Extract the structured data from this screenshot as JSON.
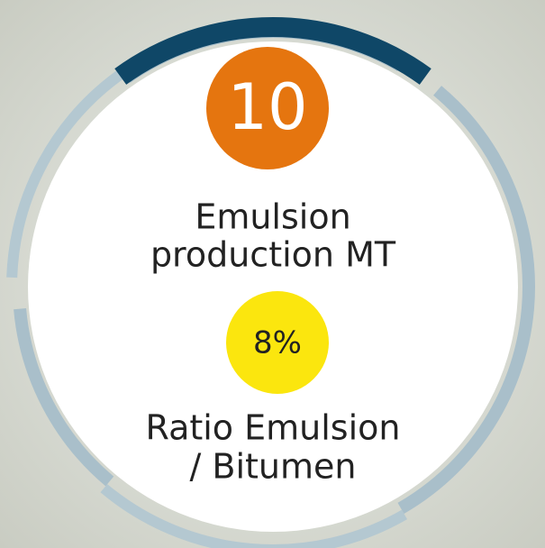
{
  "metrics": [
    {
      "value": "10",
      "label_lines": [
        "Emulsion",
        "production MT"
      ]
    },
    {
      "value": "8%",
      "label_lines": [
        "Ratio Emulsion",
        "/ Bitumen"
      ]
    }
  ]
}
